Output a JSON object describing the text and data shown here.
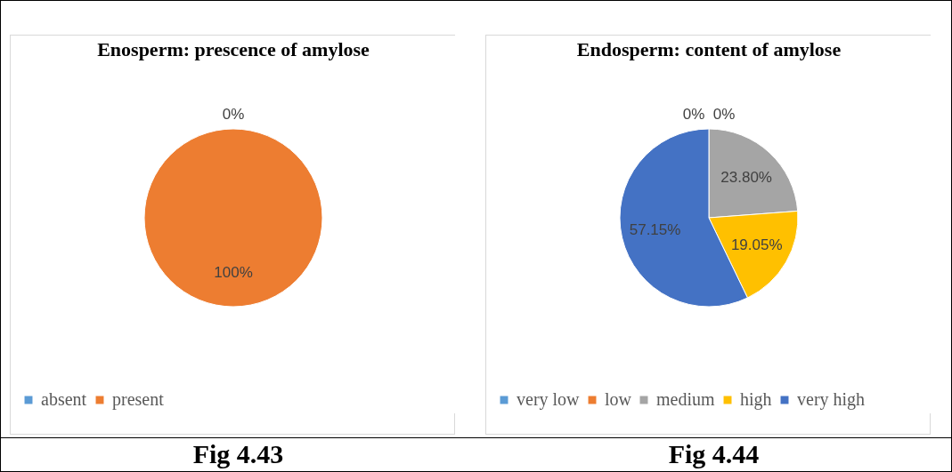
{
  "chart_data": [
    {
      "type": "pie",
      "title": "Enosperm: prescence of amylose",
      "categories": [
        "absent",
        "present"
      ],
      "values": [
        0,
        100
      ],
      "colors": [
        "#5b9bd5",
        "#ed7d31"
      ],
      "value_labels": [
        "0%",
        "100%"
      ],
      "legend": "bottom",
      "annotations": [
        "Fig 4.43"
      ]
    },
    {
      "type": "pie",
      "title": "Endosperm: content of amylose",
      "categories": [
        "very low",
        "low",
        "medium",
        "high",
        "very high"
      ],
      "values": [
        0,
        0,
        23.8,
        19.05,
        57.15
      ],
      "colors": [
        "#5b9bd5",
        "#ed7d31",
        "#a5a5a5",
        "#ffc000",
        "#4472c4"
      ],
      "value_labels": [
        "0%",
        "0%",
        "23.80%",
        "19.05%",
        "57.15%"
      ],
      "legend": "bottom",
      "annotations": [
        "Fig 4.44"
      ]
    }
  ]
}
